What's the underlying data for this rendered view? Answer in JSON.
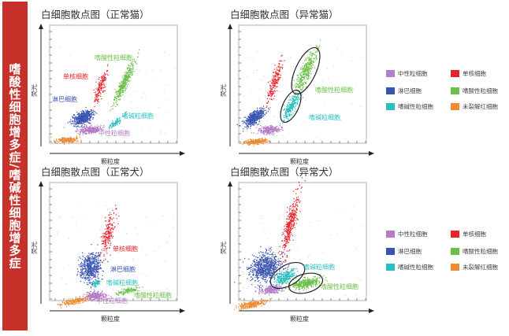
{
  "side_title": "嗜酸性细胞增多症/嗜碱性细胞增多症",
  "axis": {
    "x": "颗粒度",
    "y": "荧光"
  },
  "colors": {
    "neutrophil": "#b57cc8",
    "monocyte": "#e8222a",
    "lymphocyte": "#3a55b0",
    "eosinophil": "#6cc04a",
    "basophil": "#2bbfbf",
    "rbc": "#f08a30",
    "accent": "#c8302a"
  },
  "panels": [
    {
      "title": "白细胞散点图（正常猫）",
      "labels": {
        "eos": "嗜酸性粒细胞",
        "mono": "单核细胞",
        "lym": "淋巴细胞",
        "baso": "嗜碱粒细胞",
        "neut": "中性粒细胞"
      }
    },
    {
      "title": "白细胞散点图（异常猫）",
      "labels": {
        "eos": "嗜酸性粒细胞",
        "baso": "嗜碱粒细胞"
      }
    },
    {
      "title": "白细胞散点图（正常犬）",
      "labels": {
        "mono": "单核细胞",
        "lym": "淋巴细胞",
        "baso": "嗜碱粒细胞",
        "eos": "嗜酸性粒细胞",
        "neut": "中性粒细胞"
      }
    },
    {
      "title": "白细胞散点图（异常犬）",
      "labels": {
        "baso": "嗜碱粒细胞",
        "eos": "嗜酸性粒细胞"
      }
    }
  ],
  "legend": [
    {
      "label": "中性粒细胞",
      "color": "#b57cc8"
    },
    {
      "label": "单核细胞",
      "color": "#e8222a"
    },
    {
      "label": "淋巴细胞",
      "color": "#3a55b0"
    },
    {
      "label": "嗜酸性粒细胞",
      "color": "#6cc04a"
    },
    {
      "label": "嗜碱性粒细胞",
      "color": "#2bbfbf"
    },
    {
      "label": "未裂解红细胞",
      "color": "#f08a30"
    }
  ]
}
